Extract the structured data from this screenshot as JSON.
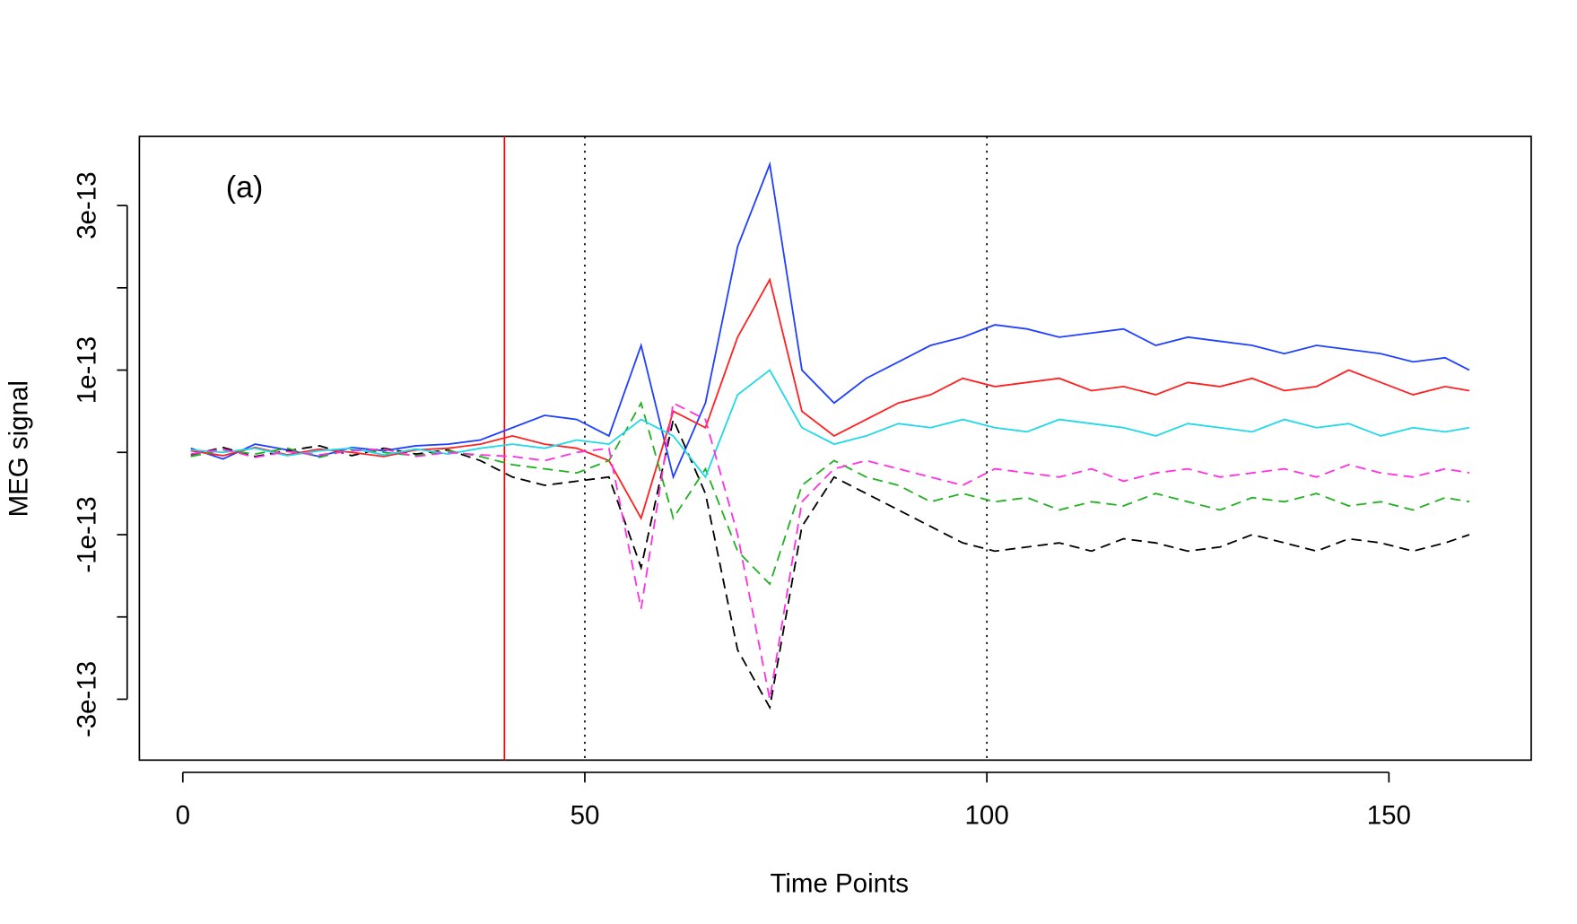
{
  "chart_data": {
    "type": "line",
    "annotation": "(a)",
    "x_label": "Time Points",
    "y_label": "MEG signal",
    "xlim": [
      -5.4,
      167.7
    ],
    "ylim": [
      -3.74e-13,
      3.84e-13
    ],
    "xticks": [
      0,
      50,
      100,
      150
    ],
    "yticks": [
      {
        "value": -3e-13,
        "label": "-3e-13"
      },
      {
        "value": -2e-13,
        "label": null
      },
      {
        "value": -1e-13,
        "label": "-1e-13"
      },
      {
        "value": 0,
        "label": null
      },
      {
        "value": 1e-13,
        "label": "1e-13"
      },
      {
        "value": 2e-13,
        "label": null
      },
      {
        "value": 3e-13,
        "label": "3e-13"
      }
    ],
    "vlines": [
      {
        "x": 40,
        "color": "#ff0000",
        "linestyle": "solid"
      },
      {
        "x": 50,
        "color": "#000000",
        "linestyle": "dotted"
      },
      {
        "x": 100,
        "color": "#000000",
        "linestyle": "dotted"
      }
    ],
    "x": [
      1,
      5,
      9,
      13,
      17,
      21,
      25,
      29,
      33,
      37,
      41,
      45,
      49,
      53,
      57,
      61,
      65,
      69,
      73,
      77,
      81,
      85,
      89,
      93,
      97,
      101,
      105,
      109,
      113,
      117,
      121,
      125,
      129,
      133,
      137,
      141,
      145,
      149,
      153,
      157,
      160
    ],
    "series": [
      {
        "color": "#2040ff",
        "linestyle": "solid",
        "values": [
          5e-15,
          -8e-15,
          1e-14,
          3e-15,
          -5e-15,
          6e-15,
          2e-15,
          8e-15,
          1e-14,
          1.5e-14,
          3e-14,
          4.5e-14,
          4e-14,
          2e-14,
          1.3e-13,
          -3e-14,
          6e-14,
          2.5e-13,
          3.5e-13,
          1e-13,
          6e-14,
          9e-14,
          1.1e-13,
          1.3e-13,
          1.4e-13,
          1.55e-13,
          1.5e-13,
          1.4e-13,
          1.45e-13,
          1.5e-13,
          1.3e-13,
          1.4e-13,
          1.35e-13,
          1.3e-13,
          1.2e-13,
          1.3e-13,
          1.25e-13,
          1.2e-13,
          1.1e-13,
          1.15e-13,
          1e-13
        ]
      },
      {
        "color": "#000000",
        "linestyle": "dashed",
        "values": [
          -3e-15,
          6e-15,
          -5e-15,
          2e-15,
          8e-15,
          -4e-15,
          5e-15,
          -2e-15,
          3e-15,
          -1e-14,
          -3e-14,
          -4e-14,
          -3.5e-14,
          -3e-14,
          -1.4e-13,
          4e-14,
          -5e-14,
          -2.4e-13,
          -3.1e-13,
          -9e-14,
          -3e-14,
          -5e-14,
          -7e-14,
          -9e-14,
          -1.1e-13,
          -1.2e-13,
          -1.15e-13,
          -1.1e-13,
          -1.2e-13,
          -1.05e-13,
          -1.1e-13,
          -1.2e-13,
          -1.15e-13,
          -1e-13,
          -1.1e-13,
          -1.2e-13,
          -1.05e-13,
          -1.1e-13,
          -1.2e-13,
          -1.1e-13,
          -1e-13
        ]
      },
      {
        "color": "#ff2020",
        "linestyle": "solid",
        "values": [
          2e-15,
          -4e-15,
          6e-15,
          -3e-15,
          4e-15,
          0.0,
          -5e-15,
          3e-15,
          5e-15,
          1e-14,
          2e-14,
          1e-14,
          5e-15,
          -1e-14,
          -8e-14,
          5e-14,
          3e-14,
          1.4e-13,
          2.1e-13,
          5e-14,
          2e-14,
          4e-14,
          6e-14,
          7e-14,
          9e-14,
          8e-14,
          8.5e-14,
          9e-14,
          7.5e-14,
          8e-14,
          7e-14,
          8.5e-14,
          8e-14,
          9e-14,
          7.5e-14,
          8e-14,
          1e-13,
          8.5e-14,
          7e-14,
          8e-14,
          7.5e-14
        ]
      },
      {
        "color": "#22b022",
        "linestyle": "dashed",
        "values": [
          -5e-15,
          3e-15,
          -2e-15,
          5e-15,
          -6e-15,
          4e-15,
          0.0,
          -4e-15,
          2e-15,
          -5e-15,
          -1.5e-14,
          -2e-14,
          -2.5e-14,
          -1e-14,
          6e-14,
          -8e-14,
          -2e-14,
          -1.2e-13,
          -1.6e-13,
          -4e-14,
          -1e-14,
          -3e-14,
          -4e-14,
          -6e-14,
          -5e-14,
          -6e-14,
          -5.5e-14,
          -7e-14,
          -6e-14,
          -6.5e-14,
          -5e-14,
          -6e-14,
          -7e-14,
          -5.5e-14,
          -6e-14,
          -5e-14,
          -6.5e-14,
          -6e-14,
          -7e-14,
          -5.5e-14,
          -6e-14
        ]
      },
      {
        "color": "#20d8e8",
        "linestyle": "solid",
        "values": [
          3e-15,
          0.0,
          5e-15,
          -4e-15,
          2e-15,
          5e-15,
          -3e-15,
          4e-15,
          -2e-15,
          5e-15,
          1e-14,
          5e-15,
          1.5e-14,
          1e-14,
          4e-14,
          2e-14,
          -3e-14,
          7e-14,
          1e-13,
          3e-14,
          1e-14,
          2e-14,
          3.5e-14,
          3e-14,
          4e-14,
          3e-14,
          2.5e-14,
          4e-14,
          3.5e-14,
          3e-14,
          2e-14,
          3.5e-14,
          3e-14,
          2.5e-14,
          4e-14,
          3e-14,
          3.5e-14,
          2e-14,
          3e-14,
          2.5e-14,
          3e-14
        ]
      },
      {
        "color": "#ff30e0",
        "linestyle": "dashed",
        "values": [
          -2e-15,
          4e-15,
          -6e-15,
          1e-15,
          -3e-15,
          2e-15,
          4e-15,
          -5e-15,
          0.0,
          -3e-15,
          -5e-15,
          -1e-14,
          0.0,
          5e-15,
          -1.9e-13,
          6e-14,
          4e-14,
          -1e-13,
          -3e-13,
          -6e-14,
          -2e-14,
          -1e-14,
          -2e-14,
          -3e-14,
          -4e-14,
          -2e-14,
          -2.5e-14,
          -3e-14,
          -2e-14,
          -3.5e-14,
          -2.5e-14,
          -2e-14,
          -3e-14,
          -2.5e-14,
          -2e-14,
          -3e-14,
          -1.5e-14,
          -2.5e-14,
          -3e-14,
          -2e-14,
          -2.5e-14
        ]
      }
    ]
  }
}
